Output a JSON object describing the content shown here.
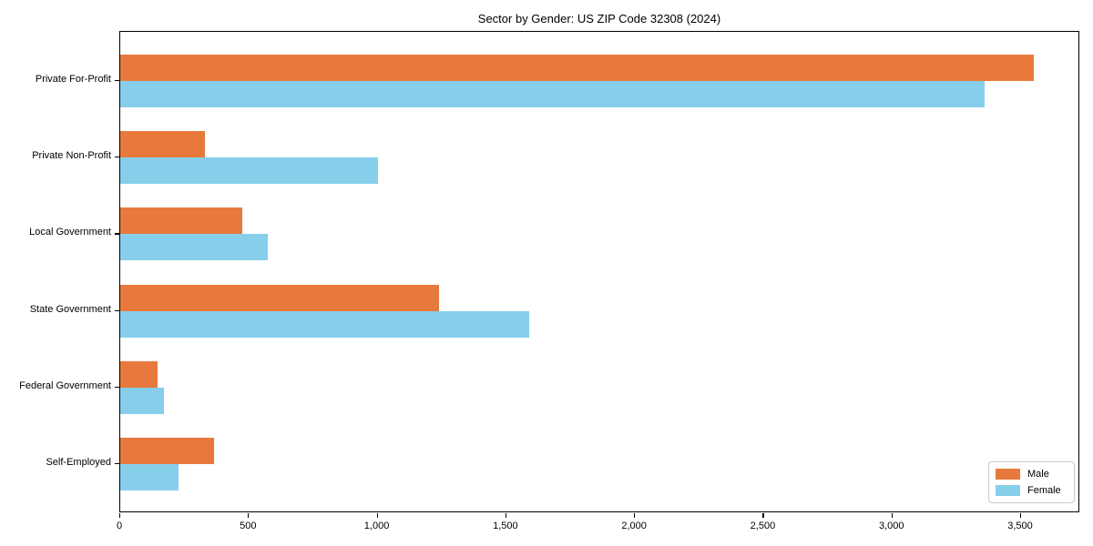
{
  "title": "Sector by Gender: US ZIP Code 32308 (2024)",
  "chart_data": {
    "type": "bar",
    "orientation": "horizontal",
    "title": "Sector by Gender: US ZIP Code 32308 (2024)",
    "categories": [
      "Private For-Profit",
      "Private Non-Profit",
      "Local Government",
      "State Government",
      "Federal Government",
      "Self-Employed"
    ],
    "series": [
      {
        "name": "Male",
        "color": "#e8793d",
        "values": [
          3550,
          330,
          475,
          1240,
          145,
          365
        ]
      },
      {
        "name": "Female",
        "color": "#87ceeb",
        "values": [
          3360,
          1000,
          575,
          1590,
          170,
          228
        ]
      }
    ],
    "xlabel": "",
    "ylabel": "",
    "xlim": [
      0,
      3730
    ],
    "xticks": [
      0,
      500,
      1000,
      1500,
      2000,
      2500,
      3000,
      3500
    ],
    "xtick_labels": [
      "0",
      "500",
      "1,000",
      "1,500",
      "2,000",
      "2,500",
      "3,000",
      "3,500"
    ],
    "grid": false,
    "plot_background": "#ffffff",
    "spine_color": "#000000",
    "legend": {
      "position": "lower right",
      "entries": [
        "Male",
        "Female"
      ]
    }
  }
}
